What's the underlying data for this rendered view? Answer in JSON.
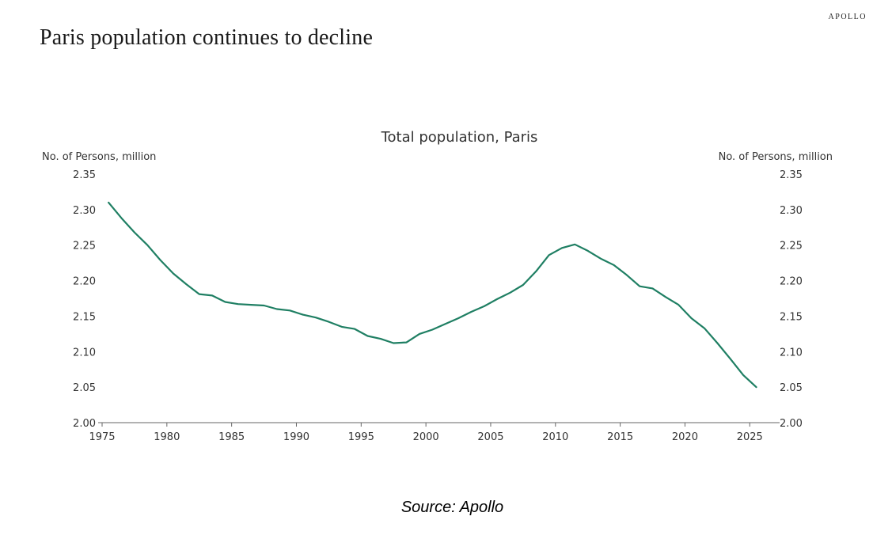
{
  "header": {
    "brand": "APOLLO",
    "headline": "Paris population continues to decline"
  },
  "footer": {
    "source": "Source: Apollo"
  },
  "colors": {
    "line": "#1f7f63",
    "axis": "#666666",
    "text": "#333333"
  },
  "chart_data": {
    "type": "line",
    "title": "Total population, Paris",
    "ylabel_left": "No. of Persons, million",
    "ylabel_right": "No. of Persons, million",
    "xlabel": "",
    "xlim": [
      1975,
      2027
    ],
    "ylim": [
      2.0,
      2.35
    ],
    "x_ticks": [
      1975,
      1980,
      1985,
      1990,
      1995,
      2000,
      2005,
      2010,
      2015,
      2020,
      2025
    ],
    "y_ticks": [
      "2.00",
      "2.05",
      "2.10",
      "2.15",
      "2.20",
      "2.25",
      "2.30",
      "2.35"
    ],
    "grid": false,
    "series": [
      {
        "name": "Total population, Paris",
        "x": [
          1975.5,
          1976.5,
          1977.5,
          1978.5,
          1979.5,
          1980.5,
          1981.5,
          1982.5,
          1983.5,
          1984.5,
          1985.5,
          1986.5,
          1987.5,
          1988.5,
          1989.5,
          1990.5,
          1991.5,
          1992.5,
          1993.5,
          1994.5,
          1995.5,
          1996.5,
          1997.5,
          1998.5,
          1999.5,
          2000.5,
          2001.5,
          2002.5,
          2003.5,
          2004.5,
          2005.5,
          2006.5,
          2007.5,
          2008.5,
          2009.5,
          2010.5,
          2011.5,
          2012.5,
          2013.5,
          2014.5,
          2015.5,
          2016.5,
          2017.5,
          2018.5,
          2019.5,
          2020.5,
          2021.5,
          2022.5,
          2023.5,
          2024.5,
          2025.5
        ],
        "values": [
          2.31,
          2.288,
          2.268,
          2.25,
          2.229,
          2.21,
          2.195,
          2.181,
          2.179,
          2.17,
          2.167,
          2.166,
          2.165,
          2.16,
          2.158,
          2.152,
          2.148,
          2.142,
          2.135,
          2.132,
          2.122,
          2.118,
          2.112,
          2.113,
          2.125,
          2.131,
          2.139,
          2.147,
          2.156,
          2.164,
          2.174,
          2.183,
          2.194,
          2.213,
          2.236,
          2.246,
          2.251,
          2.242,
          2.231,
          2.222,
          2.208,
          2.192,
          2.189,
          2.177,
          2.166,
          2.147,
          2.133,
          2.112,
          2.09,
          2.067,
          2.05
        ]
      }
    ]
  }
}
